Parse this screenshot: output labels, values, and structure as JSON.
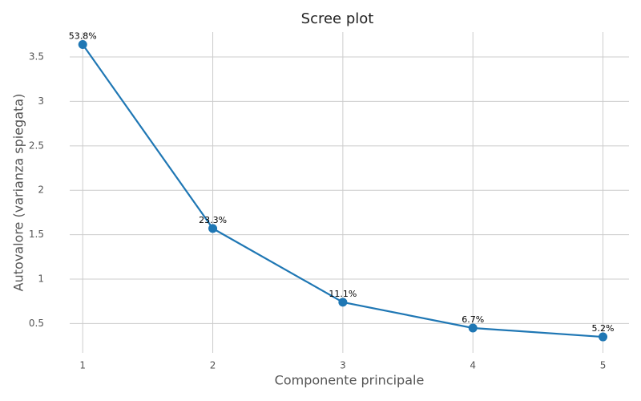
{
  "chart_data": {
    "type": "line",
    "title": "Scree plot",
    "xlabel": "Componente principale",
    "ylabel": "Autovalore (varianza spiegata)",
    "x": [
      1,
      2,
      3,
      4,
      5
    ],
    "series": [
      {
        "color": "#1f77b4",
        "values": [
          3.64,
          1.57,
          0.74,
          0.45,
          0.35
        ]
      }
    ],
    "annotations": [
      "53.8%",
      "23.3%",
      "11.1%",
      "6.7%",
      "5.2%"
    ],
    "xlim": [
      0.9,
      5.2
    ],
    "xticks": [
      1,
      2,
      3,
      4,
      5
    ],
    "ylim": [
      0.17,
      3.78
    ],
    "yticks": [
      0.5,
      1.0,
      1.5,
      2.0,
      2.5,
      3.0,
      3.5
    ],
    "grid": true
  }
}
